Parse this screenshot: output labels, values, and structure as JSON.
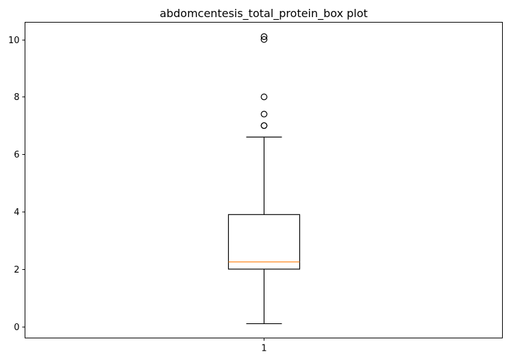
{
  "chart_data": {
    "type": "box",
    "title": "abdomcentesis_total_protein_box plot",
    "xlabel": "",
    "ylabel": "",
    "categories": [
      "1"
    ],
    "ylim": [
      -0.4,
      10.6
    ],
    "yticks": [
      0,
      2,
      4,
      6,
      8,
      10
    ],
    "ytick_labels": [
      "0",
      "2",
      "4",
      "6",
      "8",
      "10"
    ],
    "grid": false,
    "boxes": [
      {
        "label": "1",
        "whisker_low": 0.1,
        "q1": 2.0,
        "median": 2.25,
        "q3": 3.9,
        "whisker_high": 6.6,
        "outliers": [
          7.0,
          7.0,
          7.4,
          8.0,
          10.0,
          10.1
        ]
      }
    ],
    "colors": {
      "box": "#000000",
      "median": "#ff7f0e",
      "outlier": "#000000"
    }
  }
}
